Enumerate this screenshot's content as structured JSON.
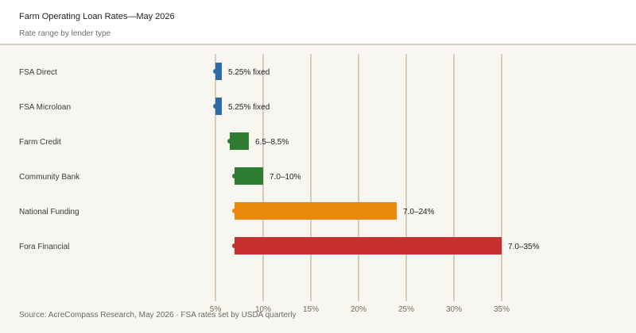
{
  "header": {
    "title": "Farm Operating Loan Rates—May 2026",
    "subtitle": "Rate range by lender type"
  },
  "footer": {
    "source": "Source: AcreCompass Research, May 2026 · FSA rates set by USDA quarterly"
  },
  "colors": {
    "fsa": "#2e6aa6",
    "farm_credit": "#2f7d32",
    "community_bank": "#2f7d32",
    "national_funding": "#e8890c",
    "fora_financial": "#c8302f",
    "grid": "#d9cbb6"
  },
  "chart_data": {
    "type": "bar",
    "orientation": "horizontal-range",
    "title": "Farm Operating Loan Rates—May 2026",
    "subtitle": "Rate range by lender type",
    "xlim": [
      5,
      35
    ],
    "xticks": [
      "5%",
      "10%",
      "15%",
      "20%",
      "25%",
      "30%",
      "35%"
    ],
    "xtick_values": [
      5,
      10,
      15,
      20,
      25,
      30,
      35
    ],
    "grid": true,
    "categories": [
      "FSA Direct",
      "FSA Microloan",
      "Farm Credit",
      "Community Bank",
      "National Funding",
      "Fora Financial"
    ],
    "series": [
      {
        "values": [
          {
            "low": 5.25,
            "high": 5.25,
            "label": "5.25% fixed",
            "color": "#2e6aa6"
          },
          {
            "low": 5.25,
            "high": 5.25,
            "label": "5.25% fixed",
            "color": "#2e6aa6"
          },
          {
            "low": 6.5,
            "high": 8.5,
            "label": "6.5–8.5%",
            "color": "#2f7d32"
          },
          {
            "low": 7.0,
            "high": 10,
            "label": "7.0–10%",
            "color": "#2f7d32"
          },
          {
            "low": 7.0,
            "high": 24,
            "label": "7.0–24%",
            "color": "#e8890c"
          },
          {
            "low": 7.0,
            "high": 35,
            "label": "7.0–35%",
            "color": "#c8302f"
          }
        ]
      }
    ]
  }
}
